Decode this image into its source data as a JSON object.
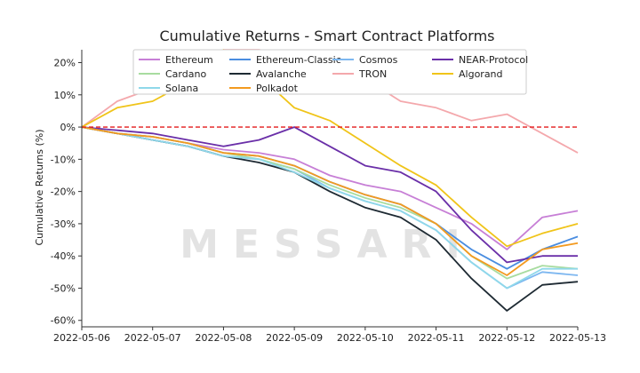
{
  "chart_data": {
    "type": "line",
    "title": "Cumulative Returns - Smart Contract Platforms",
    "xlabel": "",
    "ylabel": "Cumulative Returns (%)",
    "ylim": [
      -62,
      24
    ],
    "xlim": [
      "2022-05-06",
      "2022-05-13"
    ],
    "x_ticks": [
      "2022-05-06",
      "2022-05-07",
      "2022-05-08",
      "2022-05-09",
      "2022-05-10",
      "2022-05-11",
      "2022-05-12",
      "2022-05-13"
    ],
    "y_ticks": [
      20,
      10,
      0,
      -10,
      -20,
      -30,
      -40,
      -50,
      -60
    ],
    "y_tick_labels": [
      "20%",
      "10%",
      "0%",
      "-10%",
      "-20%",
      "-30%",
      "-40%",
      "-50%",
      "-60%"
    ],
    "reference_line": {
      "y": 0,
      "color": "#e41a1c",
      "style": "dashed"
    },
    "grid": false,
    "legend_position": "top-center",
    "watermark": "MESSARI",
    "x": [
      "2022-05-06",
      "2022-05-06 12:00",
      "2022-05-07",
      "2022-05-07 12:00",
      "2022-05-08",
      "2022-05-08 12:00",
      "2022-05-09",
      "2022-05-09 12:00",
      "2022-05-10",
      "2022-05-10 12:00",
      "2022-05-11",
      "2022-05-11 12:00",
      "2022-05-12",
      "2022-05-12 12:00",
      "2022-05-13"
    ],
    "series": [
      {
        "name": "Ethereum",
        "color": "#c77fd6",
        "values": [
          0,
          -2,
          -3,
          -5,
          -7,
          -8,
          -10,
          -15,
          -18,
          -20,
          -25,
          -30,
          -38,
          -28,
          -26
        ]
      },
      {
        "name": "Ethereum-Classic",
        "color": "#4a8de0",
        "values": [
          0,
          -2,
          -3,
          -5,
          -8,
          -9,
          -12,
          -17,
          -21,
          -24,
          -30,
          -38,
          -44,
          -38,
          -34
        ]
      },
      {
        "name": "Cosmos",
        "color": "#7db7f0",
        "values": [
          0,
          -2,
          -4,
          -6,
          -9,
          -10,
          -13,
          -19,
          -23,
          -26,
          -32,
          -42,
          -50,
          -45,
          -46
        ]
      },
      {
        "name": "NEAR-Protocol",
        "color": "#6a2fa8",
        "values": [
          0,
          -1,
          -2,
          -4,
          -6,
          -4,
          0,
          -6,
          -12,
          -14,
          -20,
          -32,
          -42,
          -40,
          -40
        ]
      },
      {
        "name": "Cardano",
        "color": "#a8dca0",
        "values": [
          0,
          -2,
          -3,
          -5,
          -8,
          -10,
          -13,
          -18,
          -22,
          -25,
          -30,
          -40,
          -47,
          -43,
          -44
        ]
      },
      {
        "name": "Avalanche",
        "color": "#1e2a33",
        "values": [
          0,
          -2,
          -4,
          -6,
          -9,
          -11,
          -14,
          -20,
          -25,
          -28,
          -35,
          -47,
          -57,
          -49,
          -48
        ]
      },
      {
        "name": "TRON",
        "color": "#f4a8ac",
        "values": [
          0,
          8,
          12,
          18,
          24,
          24,
          22,
          20,
          15,
          8,
          6,
          2,
          4,
          -2,
          -8
        ]
      },
      {
        "name": "Algorand",
        "color": "#f0c419",
        "values": [
          0,
          6,
          8,
          14,
          24,
          16,
          6,
          2,
          -5,
          -12,
          -18,
          -28,
          -37,
          -33,
          -30
        ]
      },
      {
        "name": "Solana",
        "color": "#8fd8ea",
        "values": [
          0,
          -2,
          -4,
          -6,
          -9,
          -10,
          -14,
          -19,
          -23,
          -26,
          -32,
          -42,
          -50,
          -44,
          -44
        ]
      },
      {
        "name": "Polkadot",
        "color": "#f39a1f",
        "values": [
          0,
          -2,
          -3,
          -5,
          -8,
          -9,
          -12,
          -17,
          -21,
          -24,
          -30,
          -40,
          -46,
          -38,
          -36
        ]
      }
    ]
  }
}
